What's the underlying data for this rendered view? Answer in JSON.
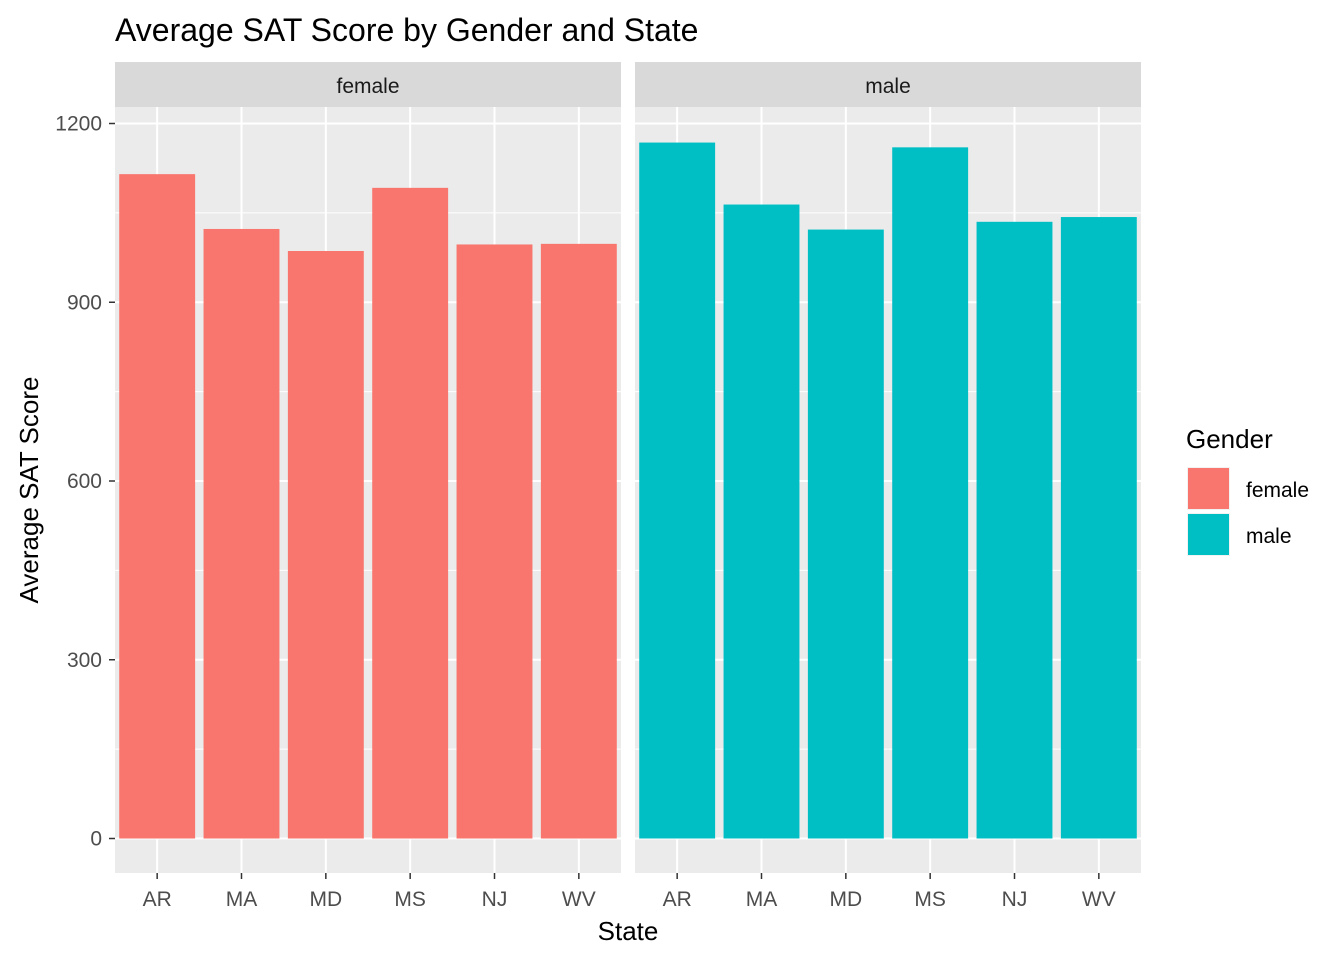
{
  "chart_data": {
    "type": "bar",
    "title": "Average SAT Score by Gender and State",
    "xlabel": "State",
    "ylabel": "Average SAT Score",
    "ylim": [
      0,
      1200
    ],
    "yticks": [
      0,
      300,
      600,
      900,
      1200
    ],
    "categories": [
      "AR",
      "MA",
      "MD",
      "MS",
      "NJ",
      "WV"
    ],
    "facets": [
      "female",
      "male"
    ],
    "grid": true,
    "legend": {
      "title": "Gender",
      "position": "right"
    },
    "series": [
      {
        "name": "female",
        "color": "#F8766D",
        "values": [
          1115,
          1023,
          986,
          1092,
          997,
          998
        ]
      },
      {
        "name": "male",
        "color": "#00BFC4",
        "values": [
          1168,
          1064,
          1022,
          1160,
          1035,
          1043
        ]
      }
    ]
  }
}
